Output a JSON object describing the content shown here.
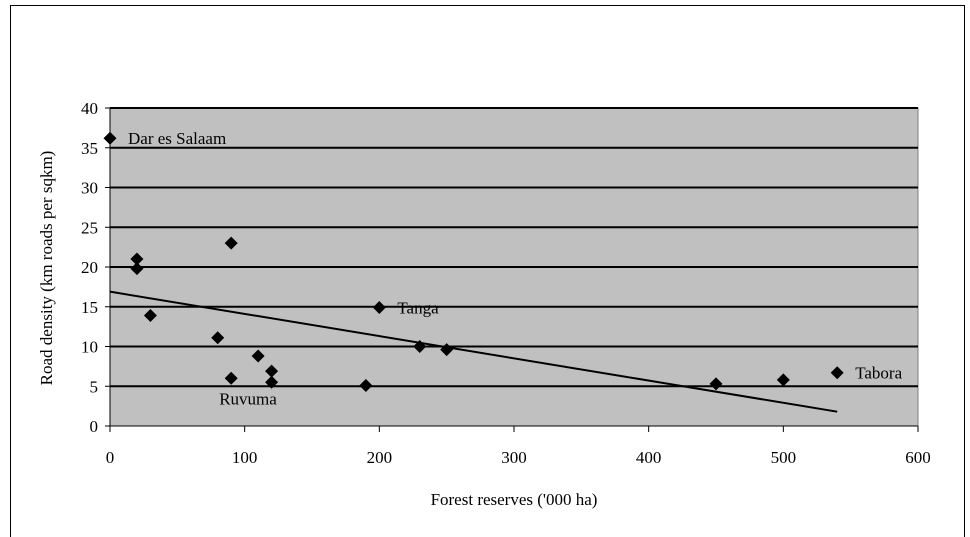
{
  "chart_data": {
    "type": "scatter",
    "title": "",
    "xlabel": "Forest reserves ('000 ha)",
    "ylabel": "Road density (km roads per sqkm)",
    "xlim": [
      0,
      600
    ],
    "ylim": [
      0,
      40
    ],
    "x_ticks": [
      "0",
      "100",
      "200",
      "300",
      "400",
      "500",
      "600"
    ],
    "y_ticks": [
      "0",
      "5",
      "10",
      "15",
      "20",
      "25",
      "30",
      "35",
      "40"
    ],
    "grid": "horizontal",
    "legend": "none",
    "plot_background": "#c0c0c0",
    "marker_color": "#000000",
    "marker": "diamond",
    "points": [
      {
        "x": 0,
        "y": 36.2,
        "label": "Dar es Salaam"
      },
      {
        "x": 20,
        "y": 21,
        "label": ""
      },
      {
        "x": 20,
        "y": 19.8,
        "label": ""
      },
      {
        "x": 30,
        "y": 13.9,
        "label": ""
      },
      {
        "x": 80,
        "y": 11.1,
        "label": ""
      },
      {
        "x": 90,
        "y": 23,
        "label": ""
      },
      {
        "x": 90,
        "y": 6,
        "label": "Ruvuma"
      },
      {
        "x": 110,
        "y": 8.8,
        "label": ""
      },
      {
        "x": 120,
        "y": 6.9,
        "label": ""
      },
      {
        "x": 120,
        "y": 5.5,
        "label": ""
      },
      {
        "x": 190,
        "y": 5.1,
        "label": ""
      },
      {
        "x": 200,
        "y": 14.9,
        "label": "Tanga"
      },
      {
        "x": 230,
        "y": 10,
        "label": ""
      },
      {
        "x": 250,
        "y": 9.6,
        "label": ""
      },
      {
        "x": 450,
        "y": 5.3,
        "label": ""
      },
      {
        "x": 500,
        "y": 5.8,
        "label": ""
      },
      {
        "x": 540,
        "y": 6.7,
        "label": "Tabora"
      }
    ],
    "trendline": {
      "x": [
        0,
        540
      ],
      "y": [
        16.9,
        1.8
      ]
    }
  }
}
